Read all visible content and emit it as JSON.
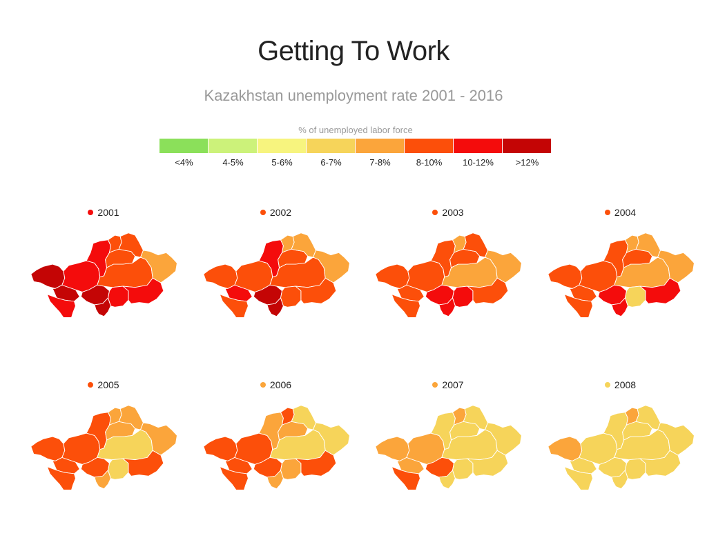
{
  "header": {
    "title": "Getting To Work",
    "subtitle": "Kazakhstan unemployment rate 2001 - 2016"
  },
  "legend": {
    "title": "% of unemployed labor force",
    "bins": [
      {
        "label": "<4%",
        "color": "#8be05a"
      },
      {
        "label": "4-5%",
        "color": "#ccf27a"
      },
      {
        "label": "5-6%",
        "color": "#f7f47e"
      },
      {
        "label": "6-7%",
        "color": "#f6d45a"
      },
      {
        "label": "7-8%",
        "color": "#fba53b"
      },
      {
        "label": "8-10%",
        "color": "#fc4f0a"
      },
      {
        "label": "10-12%",
        "color": "#f40c0c"
      },
      {
        "label": ">12%",
        "color": "#c40505"
      }
    ]
  },
  "region_names": [
    "west-kazakhstan",
    "atyrau",
    "aktobe",
    "mangystau",
    "kostanay",
    "north-kazakhstan",
    "akmola",
    "pavlodar",
    "karaganda",
    "east-kazakhstan",
    "kyzylorda",
    "south-kazakhstan",
    "zhambyl",
    "almaty"
  ],
  "maps": [
    {
      "year": "2001",
      "national_bin": 6,
      "regions": [
        7,
        7,
        6,
        6,
        6,
        5,
        5,
        5,
        5,
        4,
        7,
        7,
        6,
        6
      ]
    },
    {
      "year": "2002",
      "national_bin": 5,
      "regions": [
        5,
        6,
        5,
        5,
        6,
        4,
        5,
        4,
        5,
        4,
        7,
        7,
        5,
        5
      ]
    },
    {
      "year": "2003",
      "national_bin": 5,
      "regions": [
        5,
        5,
        5,
        5,
        5,
        4,
        5,
        5,
        4,
        4,
        6,
        6,
        6,
        5
      ]
    },
    {
      "year": "2004",
      "national_bin": 5,
      "regions": [
        5,
        5,
        5,
        5,
        5,
        4,
        5,
        4,
        4,
        4,
        6,
        6,
        3,
        6
      ]
    },
    {
      "year": "2005",
      "national_bin": 5,
      "regions": [
        5,
        5,
        5,
        5,
        5,
        4,
        4,
        4,
        3,
        4,
        5,
        4,
        3,
        5
      ]
    },
    {
      "year": "2006",
      "national_bin": 4,
      "regions": [
        5,
        5,
        5,
        5,
        4,
        5,
        4,
        3,
        3,
        3,
        5,
        4,
        4,
        5
      ]
    },
    {
      "year": "2007",
      "national_bin": 4,
      "regions": [
        4,
        4,
        4,
        5,
        3,
        4,
        3,
        3,
        3,
        3,
        5,
        3,
        3,
        3
      ]
    },
    {
      "year": "2008",
      "national_bin": 3,
      "regions": [
        4,
        3,
        3,
        3,
        3,
        4,
        3,
        3,
        3,
        3,
        3,
        3,
        3,
        3
      ]
    }
  ]
}
